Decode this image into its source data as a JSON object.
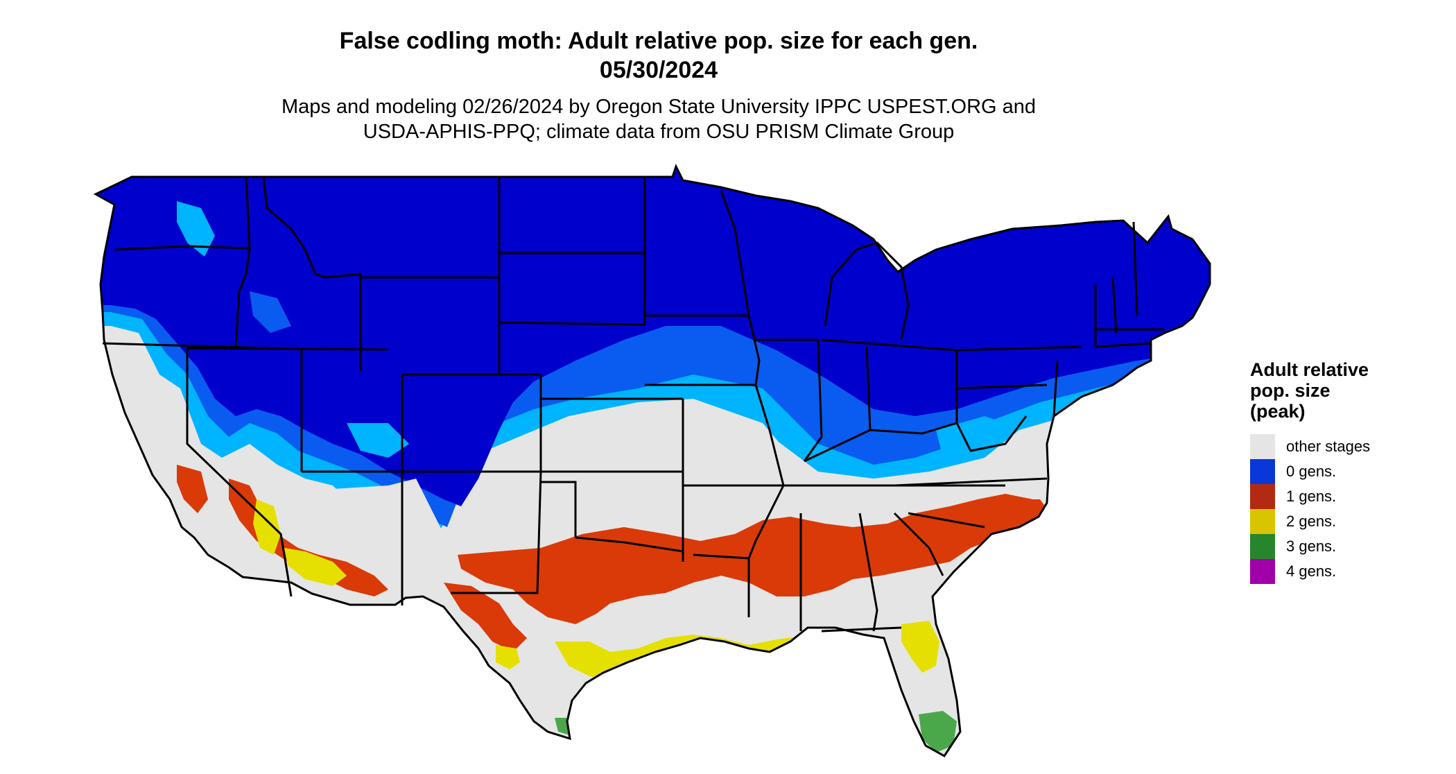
{
  "header": {
    "title_line1": "False codling moth: Adult relative pop. size for each gen.",
    "title_line2": "05/30/2024",
    "subtitle_line1": "Maps and modeling 02/26/2024 by Oregon State University IPPC USPEST.ORG and",
    "subtitle_line2": "USDA-APHIS-PPQ; climate data from OSU PRISM Climate Group"
  },
  "legend": {
    "title": "Adult relative\npop. size\n(peak)",
    "items": [
      {
        "label": "other stages",
        "color": "#e5e5e5"
      },
      {
        "label": "0 gens.",
        "color": "#0a37d8"
      },
      {
        "label": "1 gens.",
        "color": "#b32a12"
      },
      {
        "label": "2 gens.",
        "color": "#d9c400"
      },
      {
        "label": "3 gens.",
        "color": "#27862b"
      },
      {
        "label": "4 gens.",
        "color": "#a000a8"
      }
    ]
  },
  "map_colors": {
    "background": "#e5e5e5",
    "zero_gens_deep": "#0000cc",
    "zero_gens_mid": "#0a5cf0",
    "zero_gens_light": "#00b4ff",
    "one_gen": "#d93a08",
    "two_gens": "#e6e000",
    "three_gens": "#4aa84a",
    "state_border": "#000000"
  }
}
